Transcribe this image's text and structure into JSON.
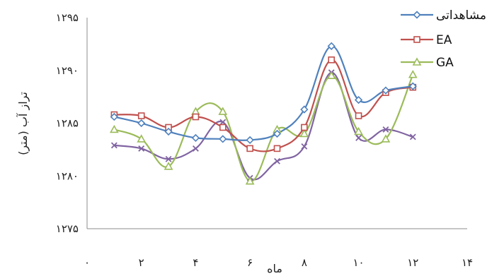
{
  "chart_data": {
    "type": "line",
    "title": "",
    "xlabel": "ماه",
    "ylabel": "تراز آب (متر)",
    "xlim": [
      0,
      14
    ],
    "ylim": [
      1275,
      1295
    ],
    "x_ticks": [
      0,
      2,
      4,
      6,
      8,
      10,
      12,
      14
    ],
    "x_tick_labels": [
      "۰",
      "۲",
      "۴",
      "۶",
      "۸",
      "۱۰",
      "۱۲",
      "۱۴"
    ],
    "y_ticks": [
      1275,
      1280,
      1285,
      1290,
      1295
    ],
    "y_tick_labels": [
      "۱۲۷۵",
      "۱۲۸۰",
      "۱۲۸۵",
      "۱۲۹۰",
      "۱۲۹۵"
    ],
    "x": [
      1,
      2,
      3,
      4,
      5,
      6,
      7,
      8,
      9,
      10,
      11,
      12
    ],
    "grid": false,
    "legend_position": "top-right",
    "series": [
      {
        "name": "مشاهداتی",
        "color": "#4f81bd",
        "marker": "diamond",
        "values": [
          1285.6,
          1285.0,
          1284.2,
          1283.6,
          1283.5,
          1283.4,
          1284.0,
          1286.3,
          1292.3,
          1287.2,
          1288.1,
          1288.5
        ]
      },
      {
        "name": "EA",
        "color": "#c0504d",
        "marker": "square",
        "values": [
          1285.8,
          1285.7,
          1284.6,
          1285.6,
          1284.6,
          1282.6,
          1282.6,
          1284.6,
          1291.0,
          1285.7,
          1287.9,
          1288.4
        ]
      },
      {
        "name": "GA",
        "color": "#9bbb59",
        "marker": "triangle",
        "values": [
          1284.4,
          1283.5,
          1280.9,
          1286.1,
          1286.1,
          1279.5,
          1284.4,
          1284.0,
          1289.5,
          1284.2,
          1283.5,
          1289.6
        ]
      },
      {
        "name": "",
        "color": "#8064a2",
        "marker": "x",
        "values": [
          1282.9,
          1282.6,
          1281.6,
          1282.6,
          1285.1,
          1279.8,
          1281.4,
          1282.8,
          1289.8,
          1283.6,
          1284.4,
          1283.7
        ]
      }
    ]
  }
}
